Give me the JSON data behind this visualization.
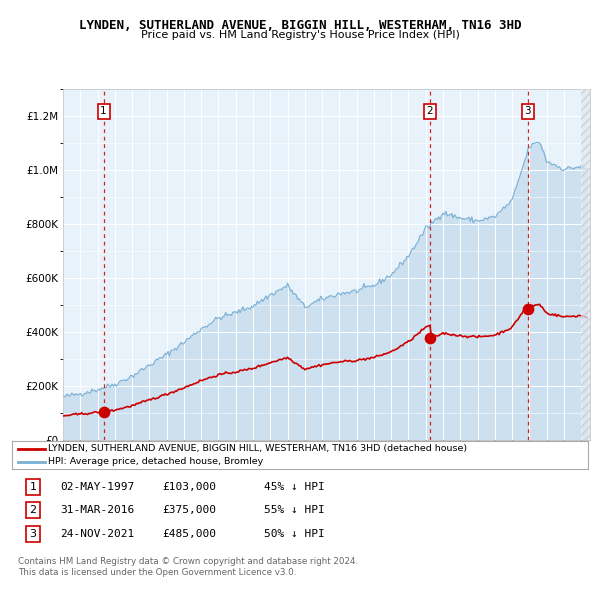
{
  "title": "LYNDEN, SUTHERLAND AVENUE, BIGGIN HILL, WESTERHAM, TN16 3HD",
  "subtitle": "Price paid vs. HM Land Registry's House Price Index (HPI)",
  "legend_entry1": "LYNDEN, SUTHERLAND AVENUE, BIGGIN HILL, WESTERHAM, TN16 3HD (detached house)",
  "legend_entry2": "HPI: Average price, detached house, Bromley",
  "footer1": "Contains HM Land Registry data © Crown copyright and database right 2024.",
  "footer2": "This data is licensed under the Open Government Licence v3.0.",
  "transactions": [
    {
      "num": 1,
      "date": "02-MAY-1997",
      "price": 103000,
      "hpi_rel": "45% ↓ HPI",
      "year": 1997.35
    },
    {
      "num": 2,
      "date": "31-MAR-2016",
      "price": 375000,
      "hpi_rel": "55% ↓ HPI",
      "year": 2016.25
    },
    {
      "num": 3,
      "date": "24-NOV-2021",
      "price": 485000,
      "hpi_rel": "50% ↓ HPI",
      "year": 2021.9
    }
  ],
  "hpi_fill_color": "#cde0f0",
  "hpi_line_color": "#7ab0d4",
  "price_color": "#cc0000",
  "plot_bg": "#e8f2fa",
  "grid_color": "#ffffff",
  "ylim": [
    0,
    1300000
  ],
  "xlim_start": 1995,
  "xlim_end": 2025.5,
  "yticks": [
    0,
    200000,
    400000,
    600000,
    800000,
    1000000,
    1200000
  ]
}
